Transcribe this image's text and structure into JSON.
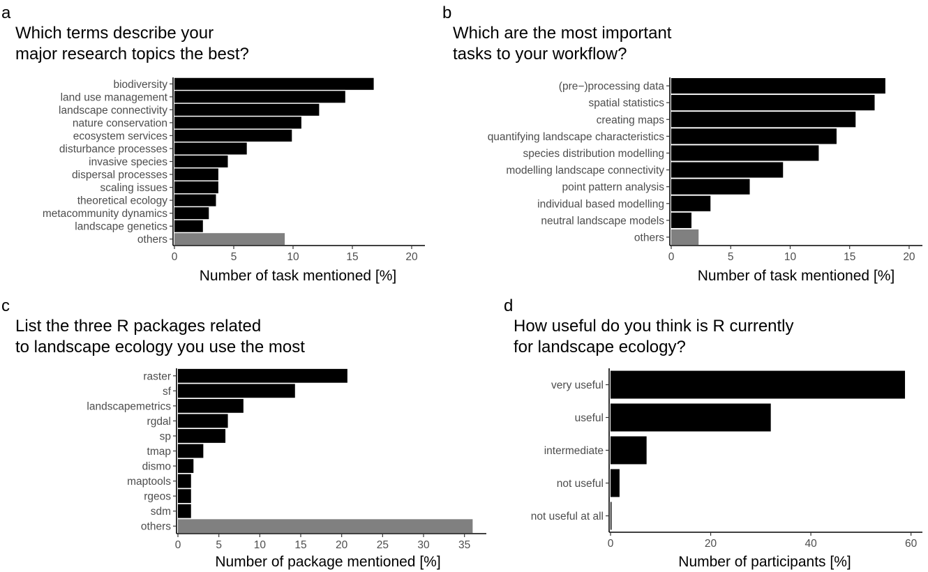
{
  "colors": {
    "bar": "#000000",
    "others_bar": "#808080",
    "background": "#ffffff"
  },
  "chart_data": [
    {
      "panel": "a",
      "type": "bar",
      "orientation": "horizontal",
      "title_lines": [
        "Which terms describe your",
        "major research topics the best?"
      ],
      "xlabel": "Number of task mentioned [%]",
      "xlim": [
        0,
        21
      ],
      "xticks": [
        0,
        5,
        10,
        15,
        20
      ],
      "categories": [
        "biodiversity",
        "land use management",
        "landscape connectivity",
        "nature conservation",
        "ecosystem services",
        "disturbance processes",
        "invasive species",
        "dispersal processes",
        "scaling issues",
        "theoretical ecology",
        "metacommunity dynamics",
        "landscape genetics",
        "others"
      ],
      "values": [
        16.8,
        14.4,
        12.2,
        10.7,
        9.9,
        6.1,
        4.5,
        3.7,
        3.7,
        3.5,
        2.9,
        2.4,
        9.3
      ],
      "highlight": [
        "others"
      ]
    },
    {
      "panel": "b",
      "type": "bar",
      "orientation": "horizontal",
      "title_lines": [
        "Which are the most important",
        "tasks to your workflow?"
      ],
      "xlabel": "Number of task mentioned [%]",
      "xlim": [
        0,
        21
      ],
      "xticks": [
        0,
        5,
        10,
        15,
        20
      ],
      "categories": [
        "(pre−)processing data",
        "spatial statistics",
        "creating maps",
        "quantifying landscape characteristics",
        "species distribution modelling",
        "modelling landscape connectivity",
        "point pattern analysis",
        "individual based modelling",
        "neutral landscape models",
        "others"
      ],
      "values": [
        18.0,
        17.1,
        15.5,
        13.9,
        12.4,
        9.4,
        6.6,
        3.3,
        1.7,
        2.3
      ],
      "highlight": [
        "others"
      ]
    },
    {
      "panel": "c",
      "type": "bar",
      "orientation": "horizontal",
      "title_lines": [
        "List the three R packages related",
        "to landscape ecology you use the most"
      ],
      "xlabel": "Number of package mentioned [%]",
      "xlim": [
        0,
        37.5
      ],
      "xticks": [
        0,
        5,
        10,
        15,
        20,
        25,
        30,
        35
      ],
      "categories": [
        "raster",
        "sf",
        "landscapemetrics",
        "rgdal",
        "sp",
        "tmap",
        "dismo",
        "maptools",
        "rgeos",
        "sdm",
        "others"
      ],
      "values": [
        20.7,
        14.3,
        8.0,
        6.1,
        5.8,
        3.1,
        1.9,
        1.6,
        1.6,
        1.6,
        36.0
      ],
      "highlight": [
        "others"
      ]
    },
    {
      "panel": "d",
      "type": "bar",
      "orientation": "horizontal",
      "title_lines": [
        "How useful do you think is R currently",
        "for landscape ecology?"
      ],
      "xlabel": "Number of participants [%]",
      "xlim": [
        0,
        62
      ],
      "xticks": [
        0,
        20,
        40,
        60
      ],
      "categories": [
        "very useful",
        "useful",
        "intermediate",
        "not useful",
        "not useful at all"
      ],
      "values": [
        58.8,
        32.0,
        7.2,
        1.8,
        0.2
      ],
      "highlight": []
    }
  ]
}
